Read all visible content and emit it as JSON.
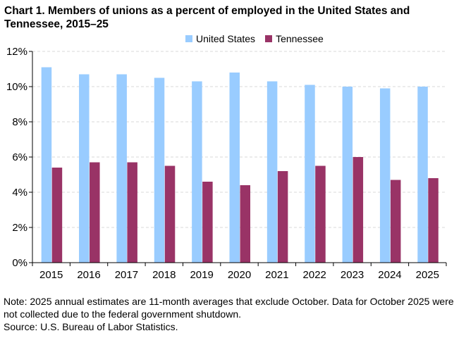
{
  "chart_data": {
    "type": "bar",
    "title": "Chart 1. Members of unions as a percent of employed  in the United States and Tennessee, 2015–25",
    "categories": [
      "2015",
      "2016",
      "2017",
      "2018",
      "2019",
      "2020",
      "2021",
      "2022",
      "2023",
      "2024",
      "2025"
    ],
    "series": [
      {
        "name": "United States",
        "color": "#99CCFF",
        "values": [
          11.1,
          10.7,
          10.7,
          10.5,
          10.3,
          10.8,
          10.3,
          10.1,
          10.0,
          9.9,
          10.0
        ]
      },
      {
        "name": "Tennessee",
        "color": "#993366",
        "values": [
          5.4,
          5.7,
          5.7,
          5.5,
          4.6,
          4.4,
          5.2,
          5.5,
          6.0,
          4.7,
          4.8
        ]
      }
    ],
    "ylim": [
      0,
      12
    ],
    "yticks": [
      "0%",
      "2%",
      "4%",
      "6%",
      "8%",
      "10%",
      "12%"
    ],
    "grid": true,
    "legend_position": "top",
    "xlabel": "",
    "ylabel": ""
  },
  "note": "Note: 2025 annual estimates are 11-month averages that exclude October. Data for October 2025 were not collected due to the federal government shutdown.",
  "source": "Source: U.S. Bureau of Labor Statistics."
}
